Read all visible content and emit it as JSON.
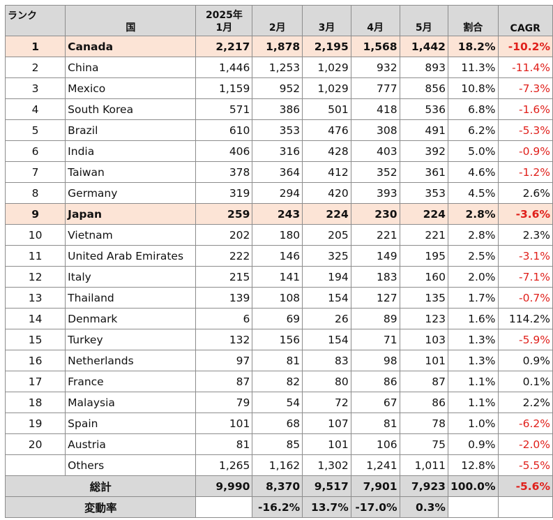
{
  "headers": {
    "rank": "ランク",
    "country": "国",
    "jan_line1": "2025年",
    "jan_line2": "1月",
    "feb": "2月",
    "mar": "3月",
    "apr": "4月",
    "may": "5月",
    "share": "割合",
    "cagr": "CAGR"
  },
  "rows": [
    {
      "rank": "1",
      "country": "Canada",
      "jan": "2,217",
      "feb": "1,878",
      "mar": "2,195",
      "apr": "1,568",
      "may": "1,442",
      "share": "18.2%",
      "cagr": "-10.2%"
    },
    {
      "rank": "2",
      "country": "China",
      "jan": "1,446",
      "feb": "1,253",
      "mar": "1,029",
      "apr": "932",
      "may": "893",
      "share": "11.3%",
      "cagr": "-11.4%"
    },
    {
      "rank": "3",
      "country": "Mexico",
      "jan": "1,159",
      "feb": "952",
      "mar": "1,029",
      "apr": "777",
      "may": "856",
      "share": "10.8%",
      "cagr": "-7.3%"
    },
    {
      "rank": "4",
      "country": "South Korea",
      "jan": "571",
      "feb": "386",
      "mar": "501",
      "apr": "418",
      "may": "536",
      "share": "6.8%",
      "cagr": "-1.6%"
    },
    {
      "rank": "5",
      "country": "Brazil",
      "jan": "610",
      "feb": "353",
      "mar": "476",
      "apr": "308",
      "may": "491",
      "share": "6.2%",
      "cagr": "-5.3%"
    },
    {
      "rank": "6",
      "country": "India",
      "jan": "406",
      "feb": "316",
      "mar": "428",
      "apr": "403",
      "may": "392",
      "share": "5.0%",
      "cagr": "-0.9%"
    },
    {
      "rank": "7",
      "country": "Taiwan",
      "jan": "378",
      "feb": "364",
      "mar": "412",
      "apr": "352",
      "may": "361",
      "share": "4.6%",
      "cagr": "-1.2%"
    },
    {
      "rank": "8",
      "country": "Germany",
      "jan": "319",
      "feb": "294",
      "mar": "420",
      "apr": "393",
      "may": "353",
      "share": "4.5%",
      "cagr": "2.6%"
    },
    {
      "rank": "9",
      "country": "Japan",
      "jan": "259",
      "feb": "243",
      "mar": "224",
      "apr": "230",
      "may": "224",
      "share": "2.8%",
      "cagr": "-3.6%"
    },
    {
      "rank": "10",
      "country": "Vietnam",
      "jan": "202",
      "feb": "180",
      "mar": "205",
      "apr": "221",
      "may": "221",
      "share": "2.8%",
      "cagr": "2.3%"
    },
    {
      "rank": "11",
      "country": "United Arab Emirates",
      "jan": "222",
      "feb": "146",
      "mar": "325",
      "apr": "149",
      "may": "195",
      "share": "2.5%",
      "cagr": "-3.1%"
    },
    {
      "rank": "12",
      "country": "Italy",
      "jan": "215",
      "feb": "141",
      "mar": "194",
      "apr": "183",
      "may": "160",
      "share": "2.0%",
      "cagr": "-7.1%"
    },
    {
      "rank": "13",
      "country": "Thailand",
      "jan": "139",
      "feb": "108",
      "mar": "154",
      "apr": "127",
      "may": "135",
      "share": "1.7%",
      "cagr": "-0.7%"
    },
    {
      "rank": "14",
      "country": "Denmark",
      "jan": "6",
      "feb": "69",
      "mar": "26",
      "apr": "89",
      "may": "123",
      "share": "1.6%",
      "cagr": "114.2%"
    },
    {
      "rank": "15",
      "country": "Turkey",
      "jan": "132",
      "feb": "156",
      "mar": "154",
      "apr": "71",
      "may": "103",
      "share": "1.3%",
      "cagr": "-5.9%"
    },
    {
      "rank": "16",
      "country": "Netherlands",
      "jan": "97",
      "feb": "81",
      "mar": "83",
      "apr": "98",
      "may": "101",
      "share": "1.3%",
      "cagr": "0.9%"
    },
    {
      "rank": "17",
      "country": "France",
      "jan": "87",
      "feb": "82",
      "mar": "80",
      "apr": "86",
      "may": "87",
      "share": "1.1%",
      "cagr": "0.1%"
    },
    {
      "rank": "18",
      "country": "Malaysia",
      "jan": "79",
      "feb": "54",
      "mar": "72",
      "apr": "67",
      "may": "86",
      "share": "1.1%",
      "cagr": "2.2%"
    },
    {
      "rank": "19",
      "country": "Spain",
      "jan": "101",
      "feb": "68",
      "mar": "107",
      "apr": "81",
      "may": "78",
      "share": "1.0%",
      "cagr": "-6.2%"
    },
    {
      "rank": "20",
      "country": "Austria",
      "jan": "81",
      "feb": "85",
      "mar": "101",
      "apr": "106",
      "may": "75",
      "share": "0.9%",
      "cagr": "-2.0%"
    },
    {
      "rank": "",
      "country": "Others",
      "jan": "1,265",
      "feb": "1,162",
      "mar": "1,302",
      "apr": "1,241",
      "may": "1,011",
      "share": "12.8%",
      "cagr": "-5.5%"
    }
  ],
  "total": {
    "label": "総計",
    "jan": "9,990",
    "feb": "8,370",
    "mar": "9,517",
    "apr": "7,901",
    "may": "7,923",
    "share": "100.0%",
    "cagr": "-5.6%"
  },
  "change": {
    "label": "変動率",
    "jan": "",
    "feb": "-16.2%",
    "mar": "13.7%",
    "apr": "-17.0%",
    "may": "0.3%"
  },
  "highlight_ranks": [
    "1",
    "9"
  ],
  "colors": {
    "header_bg": "#d9d9d9",
    "highlight_bg": "#fce4d6",
    "negative": "#e0201b"
  }
}
